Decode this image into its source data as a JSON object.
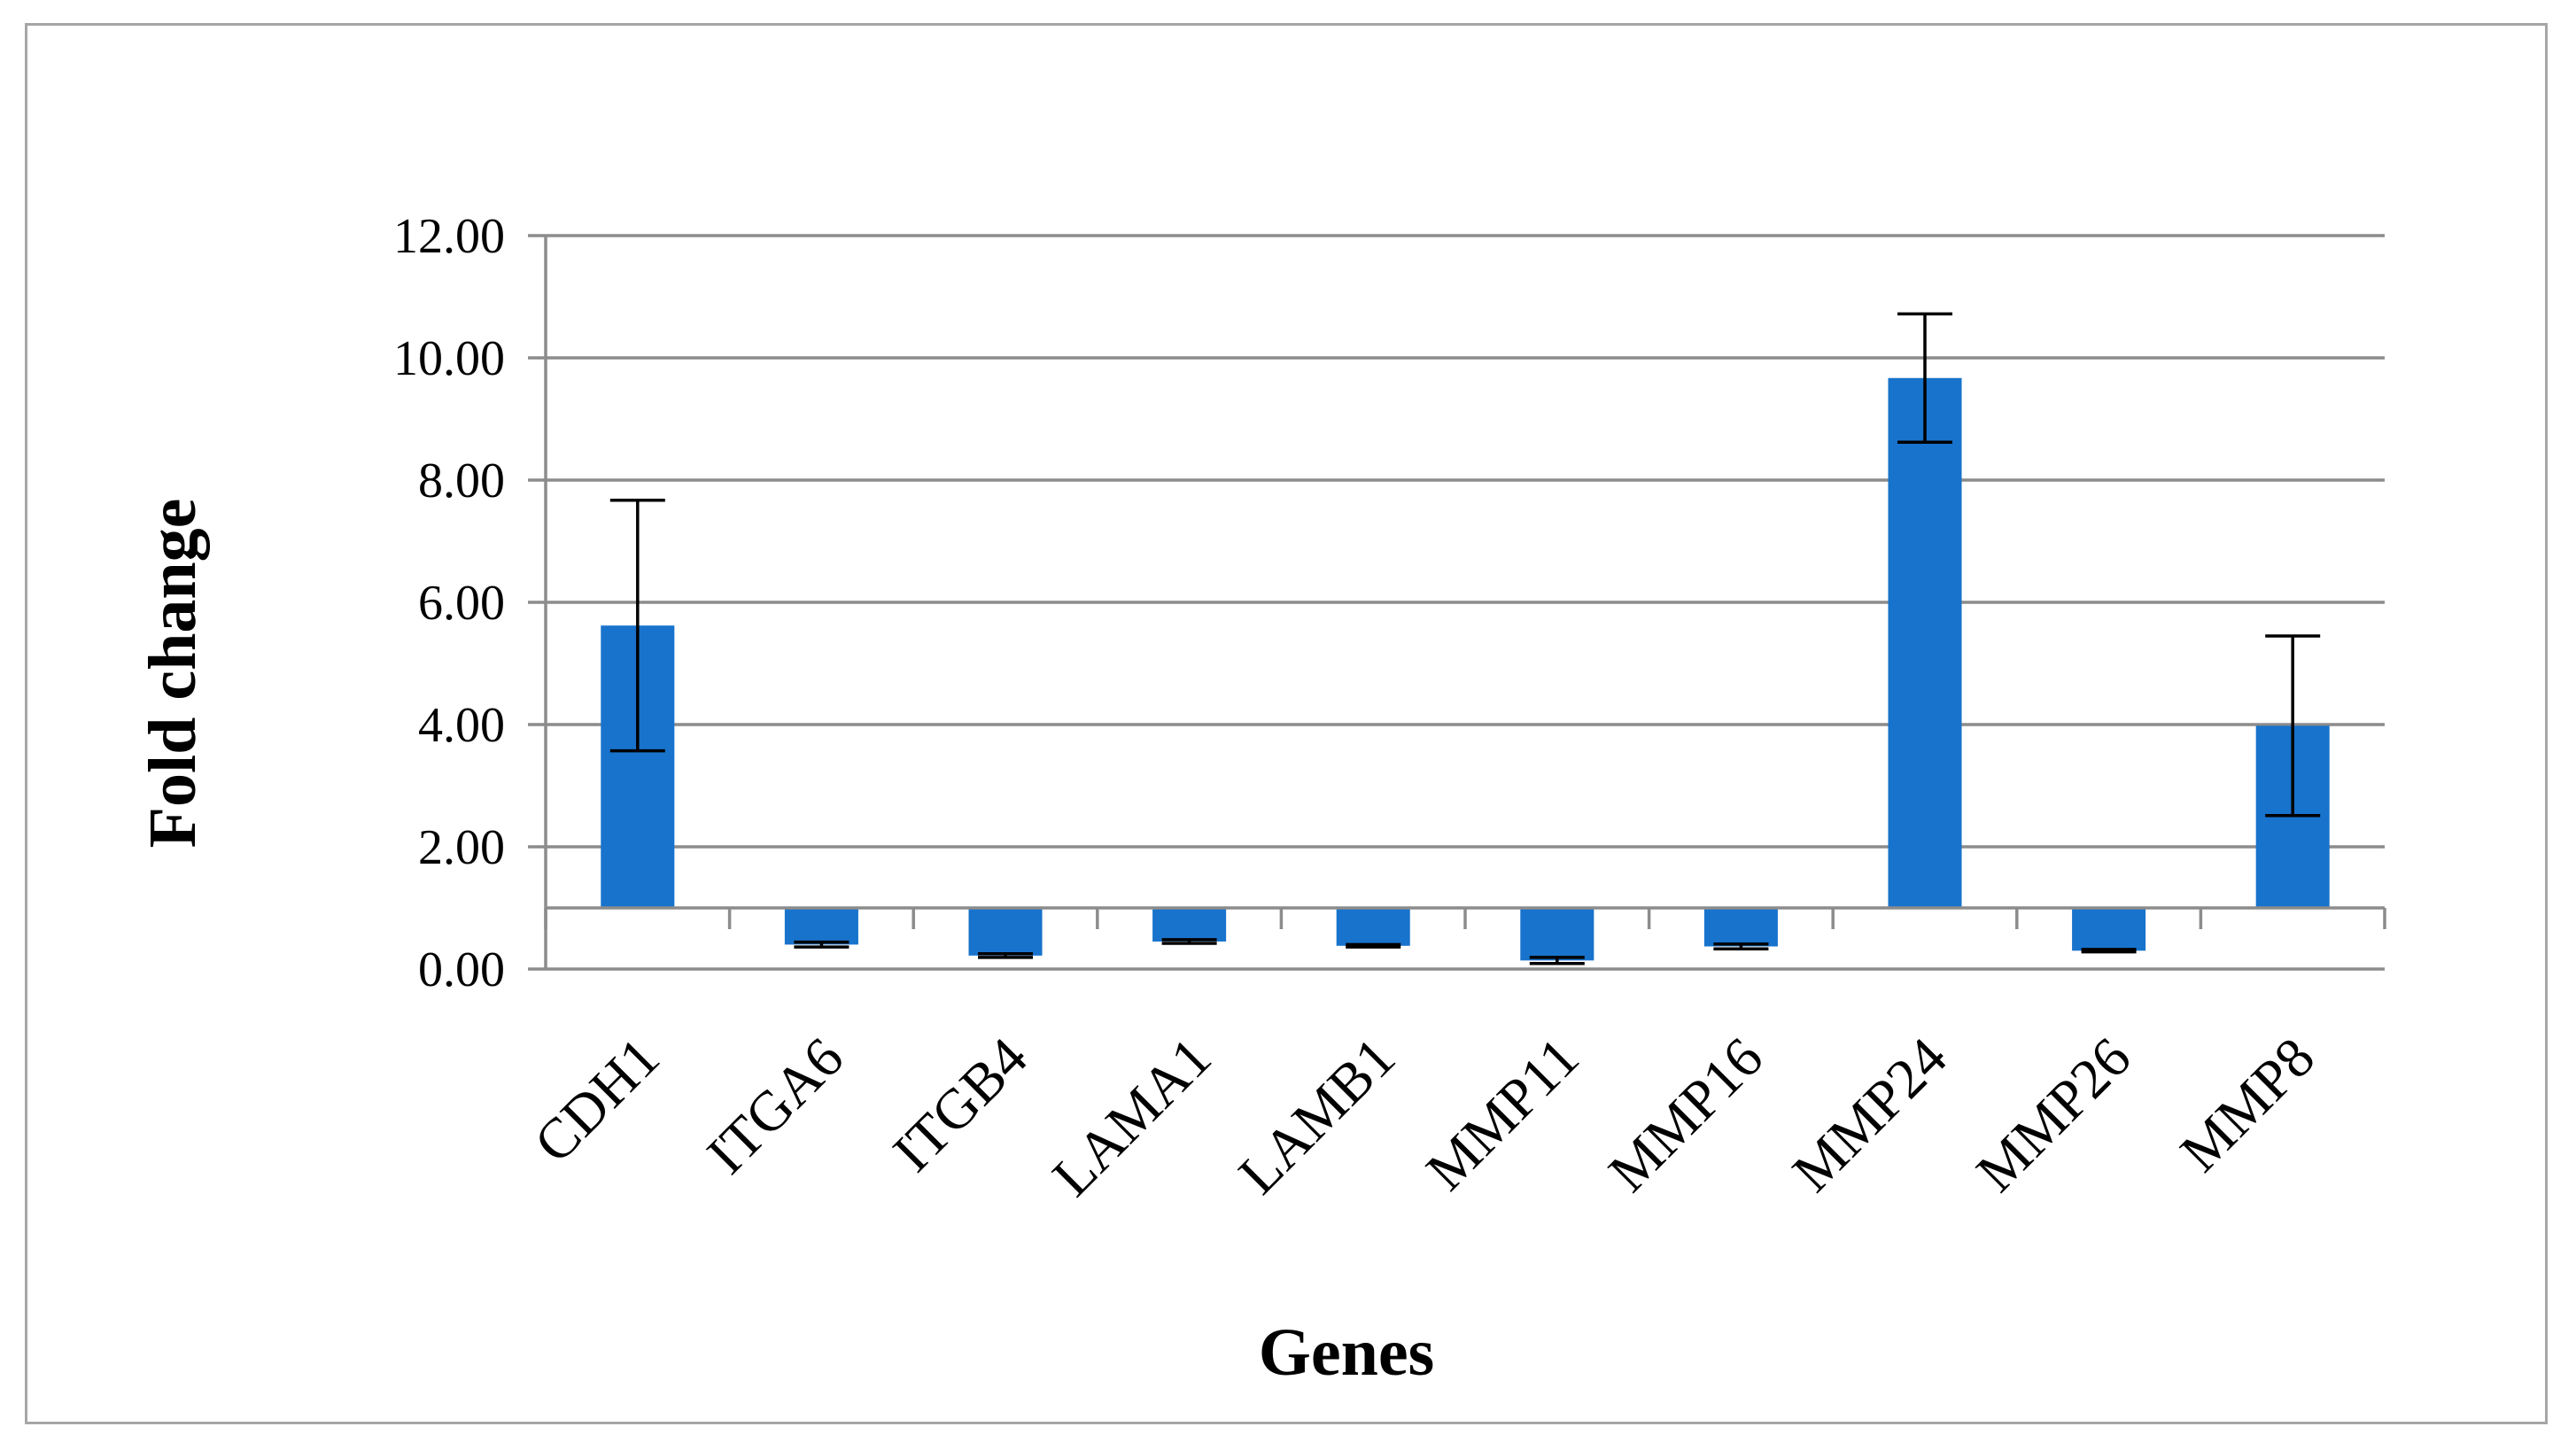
{
  "chart_data": {
    "type": "bar",
    "title": "",
    "xlabel": "Genes",
    "ylabel": "Fold change",
    "baseline": 1.0,
    "ylim": [
      0,
      12
    ],
    "yticks": [
      "0.00",
      "2.00",
      "4.00",
      "6.00",
      "8.00",
      "10.00",
      "12.00"
    ],
    "ytick_values": [
      0,
      2,
      4,
      6,
      8,
      10,
      12
    ],
    "grid": true,
    "legend": "none",
    "bar_color": "#1873cc",
    "categories": [
      "CDH1",
      "ITGA6",
      "ITGB4",
      "LAMA1",
      "LAMB1",
      "MMP11",
      "MMP16",
      "MMP24",
      "MMP26",
      "MMP8"
    ],
    "values": [
      5.62,
      0.4,
      0.22,
      0.45,
      0.38,
      0.14,
      0.37,
      9.67,
      0.3,
      3.98
    ],
    "errors": [
      2.05,
      0.04,
      0.03,
      0.03,
      0.02,
      0.05,
      0.04,
      1.05,
      0.02,
      1.47
    ]
  }
}
